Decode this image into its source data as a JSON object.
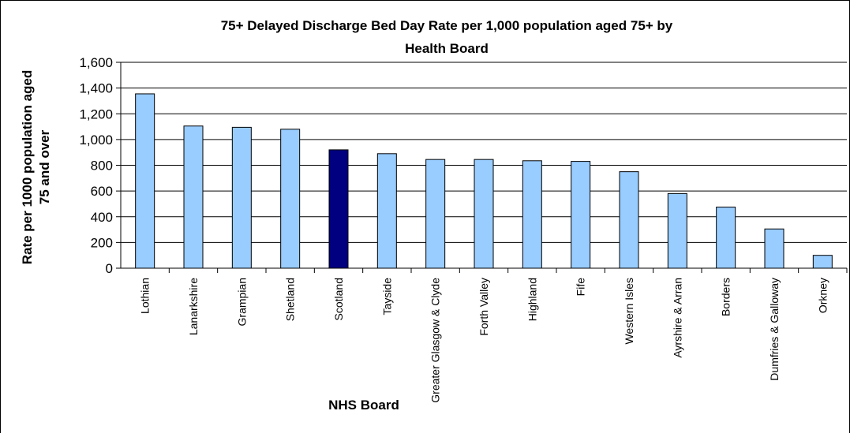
{
  "chart_data": {
    "type": "bar",
    "title_line1": "75+ Delayed Discharge Bed Day Rate per 1,000 population aged 75+ by",
    "title_line2": "Health Board",
    "xlabel": "NHS Board",
    "ylabel_line1": "Rate per 1000 population aged",
    "ylabel_line2": "75 and over",
    "ylim": [
      0,
      1600
    ],
    "yticks": [
      0,
      200,
      400,
      600,
      800,
      1000,
      1200,
      1400,
      1600
    ],
    "ytick_labels": [
      "0",
      "200",
      "400",
      "600",
      "800",
      "1,000",
      "1,200",
      "1,400",
      "1,600"
    ],
    "grid": true,
    "legend": "none",
    "categories": [
      "Lothian",
      "Lanarkshire",
      "Grampian",
      "Shetland",
      "Scotland",
      "Tayside",
      "Greater Glasgow & Clyde",
      "Forth Valley",
      "Highland",
      "Fife",
      "Western Isles",
      "Ayrshire & Arran",
      "Borders",
      "Dumfries & Galloway",
      "Orkney"
    ],
    "values": [
      1355,
      1105,
      1095,
      1080,
      920,
      890,
      845,
      845,
      835,
      830,
      750,
      580,
      475,
      305,
      100
    ],
    "highlight_category": "Scotland",
    "colors": {
      "bar": "#99ccff",
      "highlight": "#000080",
      "bar_stroke": "#000000",
      "grid": "#000000"
    }
  }
}
